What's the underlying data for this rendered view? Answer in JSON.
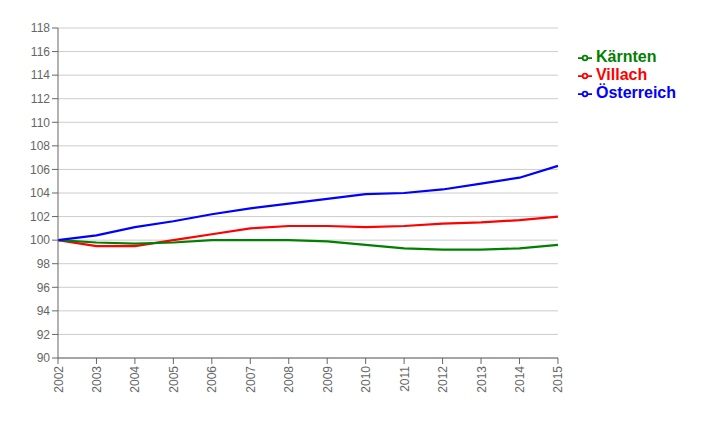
{
  "chart_data": {
    "type": "line",
    "categories": [
      "2002",
      "2003",
      "2004",
      "2005",
      "2006",
      "2007",
      "2008",
      "2009",
      "2010",
      "2011",
      "2012",
      "2013",
      "2014",
      "2015"
    ],
    "series": [
      {
        "name": "Villach",
        "color": "#FF0000",
        "values": [
          100.0,
          99.5,
          99.5,
          100.0,
          100.5,
          101.0,
          101.2,
          101.2,
          101.1,
          101.2,
          101.4,
          101.5,
          101.7,
          102.0
        ]
      },
      {
        "name": "Kärnten",
        "color": "#008000",
        "values": [
          100.0,
          99.8,
          99.7,
          99.8,
          100.0,
          100.0,
          100.0,
          99.9,
          99.6,
          99.3,
          99.2,
          99.2,
          99.3,
          99.6
        ]
      },
      {
        "name": "Österreich",
        "color": "#0000FF",
        "values": [
          100.0,
          100.4,
          101.1,
          101.6,
          102.2,
          102.7,
          103.1,
          103.5,
          103.9,
          104.0,
          104.3,
          104.8,
          105.3,
          106.3
        ]
      }
    ],
    "ylim": [
      90,
      118
    ],
    "yticks": [
      90,
      92,
      94,
      96,
      98,
      100,
      102,
      104,
      106,
      108,
      110,
      112,
      114,
      116,
      118
    ],
    "grid": true,
    "legend": "right"
  }
}
